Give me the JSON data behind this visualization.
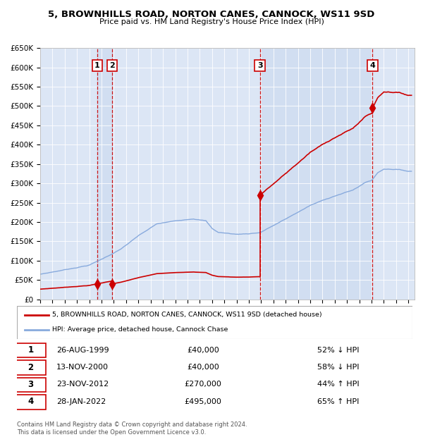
{
  "title": "5, BROWNHILLS ROAD, NORTON CANES, CANNOCK, WS11 9SD",
  "subtitle": "Price paid vs. HM Land Registry's House Price Index (HPI)",
  "background_color": "#ffffff",
  "plot_bg_color": "#dce6f5",
  "shade_color": "#c8d8ee",
  "ylim": [
    0,
    650000
  ],
  "yticks": [
    0,
    50000,
    100000,
    150000,
    200000,
    250000,
    300000,
    350000,
    400000,
    450000,
    500000,
    550000,
    600000,
    650000
  ],
  "xlim_start": 1995.0,
  "xlim_end": 2025.5,
  "xticks": [
    1995,
    1996,
    1997,
    1998,
    1999,
    2000,
    2001,
    2002,
    2003,
    2004,
    2005,
    2006,
    2007,
    2008,
    2009,
    2010,
    2011,
    2012,
    2013,
    2014,
    2015,
    2016,
    2017,
    2018,
    2019,
    2020,
    2021,
    2022,
    2023,
    2024,
    2025
  ],
  "sale_color": "#cc0000",
  "hpi_color": "#88aadd",
  "vline_color": "#cc0000",
  "transactions": [
    {
      "num": 1,
      "date": "26-AUG-1999",
      "price": 40000,
      "pct": "52%",
      "dir": "↓",
      "year": 1999.65
    },
    {
      "num": 2,
      "date": "13-NOV-2000",
      "price": 40000,
      "pct": "58%",
      "dir": "↓",
      "year": 2000.87
    },
    {
      "num": 3,
      "date": "23-NOV-2012",
      "price": 270000,
      "pct": "44%",
      "dir": "↑",
      "year": 2012.9
    },
    {
      "num": 4,
      "date": "28-JAN-2022",
      "price": 495000,
      "pct": "65%",
      "dir": "↑",
      "year": 2022.08
    }
  ],
  "legend_address": "5, BROWNHILLS ROAD, NORTON CANES, CANNOCK, WS11 9SD (detached house)",
  "legend_hpi": "HPI: Average price, detached house, Cannock Chase",
  "footnote": "Contains HM Land Registry data © Crown copyright and database right 2024.\nThis data is licensed under the Open Government Licence v3.0."
}
